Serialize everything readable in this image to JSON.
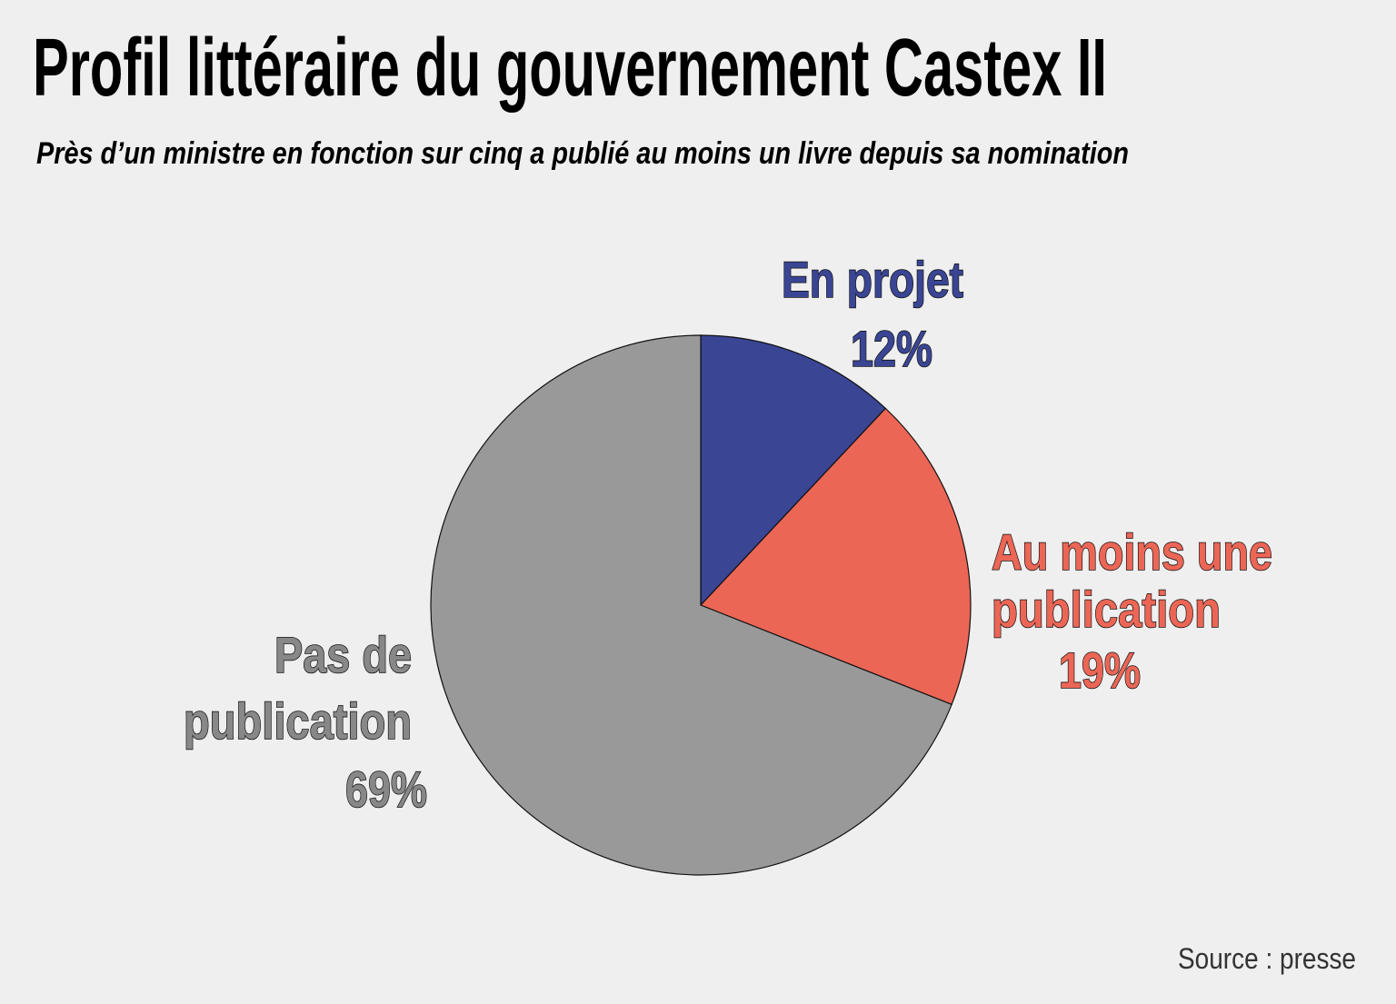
{
  "chart_data": {
    "type": "pie",
    "title": "Profil littéraire du gouvernement Castex II",
    "subtitle": "Près d’un ministre en fonction sur cinq a publié au moins un livre depuis sa nomination",
    "source": "Source : presse",
    "start": "top",
    "direction": "clockwise",
    "slices": [
      {
        "label_lines": [
          "En projet"
        ],
        "pct_label": "12%",
        "value": 12,
        "color": "#3a4594"
      },
      {
        "label_lines": [
          "Au moins une",
          "publication"
        ],
        "pct_label": "19%",
        "value": 19,
        "color": "#ec6656"
      },
      {
        "label_lines": [
          "Pas de",
          "publication"
        ],
        "pct_label": "69%",
        "value": 69,
        "color": "#999999"
      }
    ]
  }
}
